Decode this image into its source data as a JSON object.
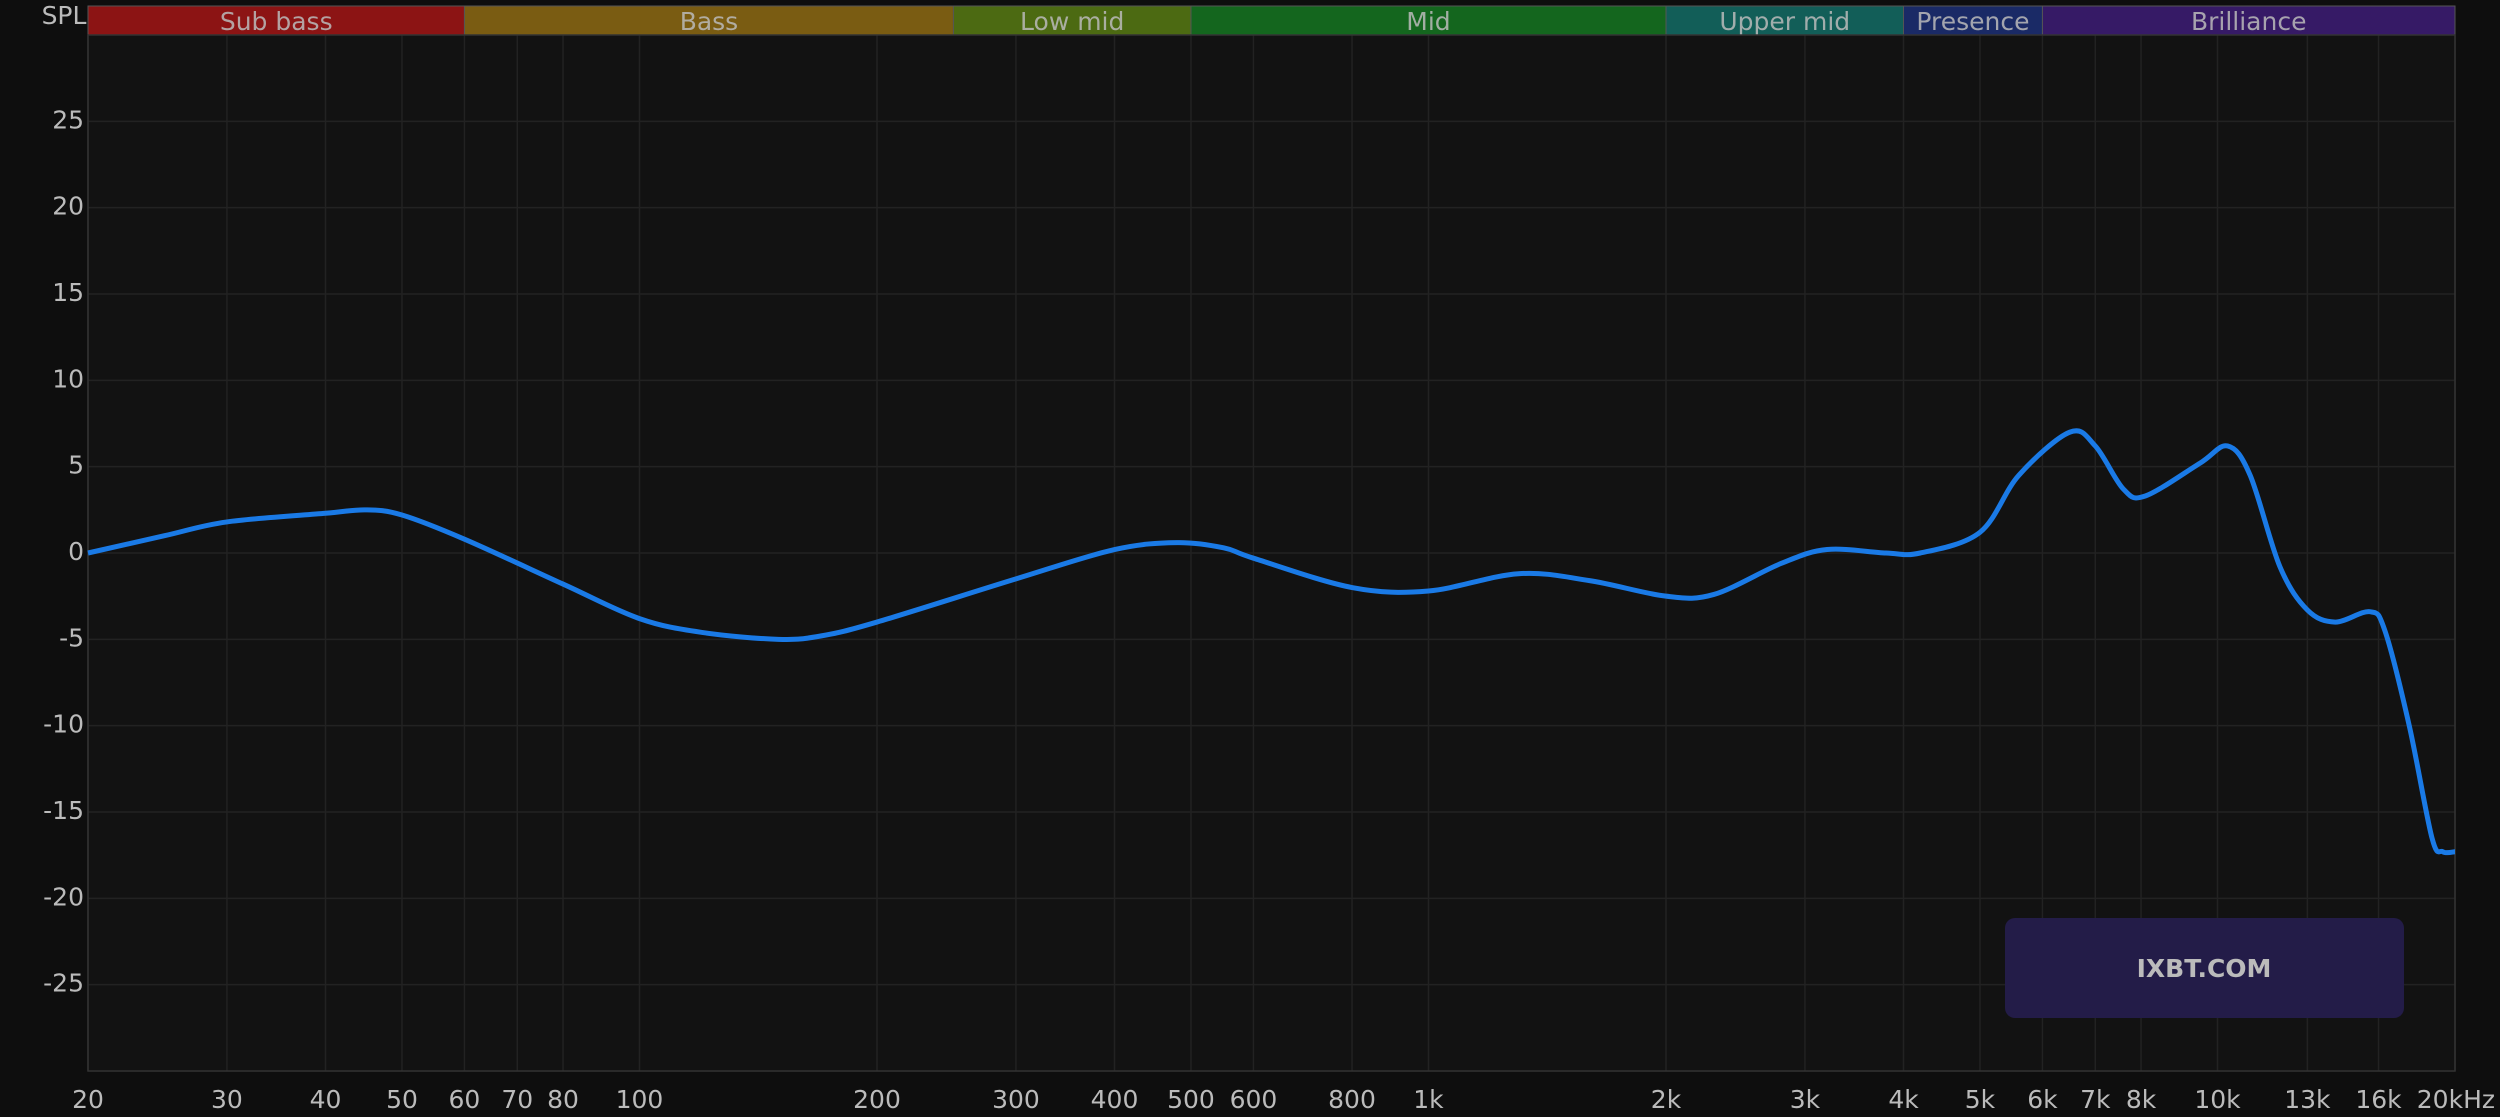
{
  "chart_data": {
    "type": "line",
    "y_label": "SPL",
    "watermark": "IXBT.COM",
    "log_x": true,
    "grid": true,
    "xlim": [
      20,
      20000
    ],
    "ylim": [
      -30,
      30
    ],
    "xticks": [
      20,
      30,
      40,
      50,
      60,
      70,
      80,
      100,
      200,
      300,
      400,
      500,
      600,
      800,
      {
        "value": 1000,
        "label": "1k"
      },
      {
        "value": 2000,
        "label": "2k"
      },
      {
        "value": 3000,
        "label": "3k"
      },
      {
        "value": 4000,
        "label": "4k"
      },
      {
        "value": 5000,
        "label": "5k"
      },
      {
        "value": 6000,
        "label": "6k"
      },
      {
        "value": 7000,
        "label": "7k"
      },
      {
        "value": 8000,
        "label": "8k"
      },
      {
        "value": 10000,
        "label": "10k"
      },
      {
        "value": 13000,
        "label": "13k"
      },
      {
        "value": 16000,
        "label": "16k"
      },
      {
        "value": 20000,
        "label": "20kHz"
      }
    ],
    "yticks": [
      25,
      20,
      15,
      10,
      5,
      0,
      -5,
      -10,
      -15,
      -20,
      -25
    ],
    "bands": [
      {
        "name": "Sub bass",
        "from": 20,
        "to": 60,
        "color": "#8c1414"
      },
      {
        "name": "Bass",
        "from": 60,
        "to": 250,
        "color": "#7a5c12"
      },
      {
        "name": "Low mid",
        "from": 250,
        "to": 500,
        "color": "#4c6a12"
      },
      {
        "name": "Mid",
        "from": 500,
        "to": 2000,
        "color": "#14661e"
      },
      {
        "name": "Upper mid",
        "from": 2000,
        "to": 4000,
        "color": "#125e58"
      },
      {
        "name": "Presence",
        "from": 4000,
        "to": 6000,
        "color": "#1a2a66"
      },
      {
        "name": "Brilliance",
        "from": 6000,
        "to": 20000,
        "color": "#361a66"
      }
    ],
    "series": [
      {
        "color": "#1a7ae6",
        "x": [
          20,
          25,
          30,
          40,
          45,
          50,
          60,
          80,
          100,
          120,
          150,
          170,
          200,
          300,
          400,
          480,
          550,
          600,
          800,
          1000,
          1300,
          1600,
          2000,
          2300,
          2800,
          3200,
          3800,
          4200,
          5000,
          5600,
          6500,
          7000,
          7600,
          8100,
          9500,
          10300,
          11000,
          12000,
          13000,
          14100,
          15600,
          16300,
          17500,
          18700,
          19300,
          20000
        ],
        "values": [
          0,
          1,
          1.8,
          2.3,
          2.5,
          2.2,
          0.8,
          -1.8,
          -3.8,
          -4.6,
          -5,
          -4.8,
          -4,
          -1.5,
          0.2,
          0.6,
          0.3,
          -0.3,
          -2,
          -2.2,
          -1.2,
          -1.6,
          -2.5,
          -2.4,
          -0.6,
          0.2,
          0,
          0,
          1.2,
          4.5,
          7,
          6.2,
          3.7,
          3.3,
          5.2,
          6.2,
          4.5,
          -0.8,
          -3.3,
          -4,
          -3.4,
          -4.5,
          -10,
          -16.5,
          -17.3,
          -17.3
        ]
      }
    ]
  }
}
